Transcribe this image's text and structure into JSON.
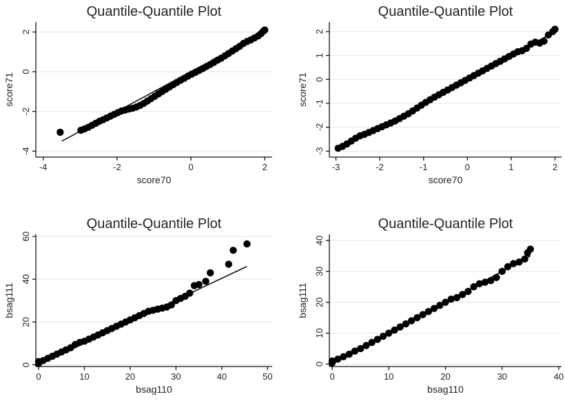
{
  "chart_data": [
    {
      "type": "scatter",
      "title": "Quantile-Quantile Plot",
      "xlabel": "score70",
      "ylabel": "score71",
      "xlim": [
        -4.2,
        2.2
      ],
      "ylim": [
        -4.3,
        2.5
      ],
      "xticks": [
        -4,
        -2,
        0,
        2
      ],
      "yticks": [
        -4,
        -2,
        0,
        2
      ],
      "grid": true,
      "reference_line": [
        [
          -3.5,
          -3.5
        ],
        [
          2.0,
          2.0
        ]
      ],
      "points": [
        [
          -3.54,
          -3.05
        ],
        [
          -2.98,
          -2.95
        ],
        [
          -2.88,
          -2.88
        ],
        [
          -2.78,
          -2.8
        ],
        [
          -2.68,
          -2.7
        ],
        [
          -2.58,
          -2.6
        ],
        [
          -2.48,
          -2.5
        ],
        [
          -2.38,
          -2.42
        ],
        [
          -2.28,
          -2.33
        ],
        [
          -2.18,
          -2.24
        ],
        [
          -2.08,
          -2.15
        ],
        [
          -1.98,
          -2.06
        ],
        [
          -1.88,
          -1.98
        ],
        [
          -1.78,
          -1.93
        ],
        [
          -1.68,
          -1.88
        ],
        [
          -1.58,
          -1.84
        ],
        [
          -1.48,
          -1.78
        ],
        [
          -1.38,
          -1.7
        ],
        [
          -1.28,
          -1.6
        ],
        [
          -1.18,
          -1.48
        ],
        [
          -1.08,
          -1.36
        ],
        [
          -0.98,
          -1.24
        ],
        [
          -0.88,
          -1.12
        ],
        [
          -0.78,
          -1.0
        ],
        [
          -0.68,
          -0.88
        ],
        [
          -0.58,
          -0.77
        ],
        [
          -0.48,
          -0.65
        ],
        [
          -0.38,
          -0.54
        ],
        [
          -0.28,
          -0.43
        ],
        [
          -0.18,
          -0.33
        ],
        [
          -0.08,
          -0.22
        ],
        [
          0.02,
          -0.12
        ],
        [
          0.12,
          -0.03
        ],
        [
          0.22,
          0.06
        ],
        [
          0.32,
          0.16
        ],
        [
          0.42,
          0.26
        ],
        [
          0.52,
          0.36
        ],
        [
          0.62,
          0.47
        ],
        [
          0.72,
          0.58
        ],
        [
          0.82,
          0.68
        ],
        [
          0.92,
          0.8
        ],
        [
          1.02,
          0.92
        ],
        [
          1.12,
          1.04
        ],
        [
          1.22,
          1.16
        ],
        [
          1.32,
          1.28
        ],
        [
          1.42,
          1.42
        ],
        [
          1.52,
          1.52
        ],
        [
          1.62,
          1.6
        ],
        [
          1.72,
          1.7
        ],
        [
          1.82,
          1.8
        ],
        [
          1.9,
          1.92
        ],
        [
          1.96,
          2.04
        ],
        [
          2.0,
          2.1
        ]
      ]
    },
    {
      "type": "scatter",
      "title": "Quantile-Quantile Plot",
      "xlabel": "score70",
      "ylabel": "score71",
      "xlim": [
        -3.15,
        2.15
      ],
      "ylim": [
        -3.25,
        2.4
      ],
      "xticks": [
        -3,
        -2,
        -1,
        0,
        1,
        2
      ],
      "yticks": [
        -3,
        -2,
        -1,
        0,
        1,
        2
      ],
      "grid": true,
      "reference_line": [
        [
          -2.95,
          -2.95
        ],
        [
          2.0,
          2.0
        ]
      ],
      "points": [
        [
          -2.95,
          -2.88
        ],
        [
          -2.85,
          -2.8
        ],
        [
          -2.75,
          -2.7
        ],
        [
          -2.65,
          -2.58
        ],
        [
          -2.55,
          -2.46
        ],
        [
          -2.45,
          -2.36
        ],
        [
          -2.35,
          -2.3
        ],
        [
          -2.25,
          -2.22
        ],
        [
          -2.15,
          -2.14
        ],
        [
          -2.05,
          -2.06
        ],
        [
          -1.95,
          -1.98
        ],
        [
          -1.85,
          -1.9
        ],
        [
          -1.75,
          -1.82
        ],
        [
          -1.65,
          -1.74
        ],
        [
          -1.55,
          -1.64
        ],
        [
          -1.45,
          -1.54
        ],
        [
          -1.35,
          -1.44
        ],
        [
          -1.25,
          -1.32
        ],
        [
          -1.15,
          -1.2
        ],
        [
          -1.05,
          -1.08
        ],
        [
          -0.95,
          -0.96
        ],
        [
          -0.85,
          -0.85
        ],
        [
          -0.75,
          -0.74
        ],
        [
          -0.65,
          -0.64
        ],
        [
          -0.55,
          -0.54
        ],
        [
          -0.45,
          -0.44
        ],
        [
          -0.35,
          -0.34
        ],
        [
          -0.25,
          -0.24
        ],
        [
          -0.15,
          -0.14
        ],
        [
          -0.05,
          -0.04
        ],
        [
          0.05,
          0.06
        ],
        [
          0.15,
          0.16
        ],
        [
          0.25,
          0.26
        ],
        [
          0.35,
          0.36
        ],
        [
          0.45,
          0.46
        ],
        [
          0.55,
          0.56
        ],
        [
          0.65,
          0.66
        ],
        [
          0.75,
          0.76
        ],
        [
          0.85,
          0.86
        ],
        [
          0.95,
          0.96
        ],
        [
          1.05,
          1.06
        ],
        [
          1.15,
          1.16
        ],
        [
          1.25,
          1.2
        ],
        [
          1.35,
          1.3
        ],
        [
          1.45,
          1.48
        ],
        [
          1.55,
          1.56
        ],
        [
          1.65,
          1.52
        ],
        [
          1.75,
          1.6
        ],
        [
          1.85,
          1.86
        ],
        [
          1.95,
          2.0
        ],
        [
          2.0,
          2.1
        ]
      ]
    },
    {
      "type": "scatter",
      "title": "Quantile-Quantile Plot",
      "xlabel": "bsag110",
      "ylabel": "bsag111",
      "xlim": [
        -0.6,
        51
      ],
      "ylim": [
        -0.8,
        61
      ],
      "xticks": [
        0,
        10,
        20,
        30,
        40,
        50
      ],
      "yticks": [
        0,
        20,
        40,
        60
      ],
      "grid": true,
      "reference_line": [
        [
          0,
          0
        ],
        [
          45.5,
          46
        ]
      ],
      "points": [
        [
          0,
          0.6
        ],
        [
          0,
          1.5
        ],
        [
          1,
          2
        ],
        [
          2,
          3
        ],
        [
          3,
          4
        ],
        [
          4,
          5
        ],
        [
          5,
          6
        ],
        [
          6,
          7
        ],
        [
          7,
          8
        ],
        [
          8,
          9.5
        ],
        [
          9,
          10.5
        ],
        [
          10,
          11
        ],
        [
          11,
          12
        ],
        [
          12,
          13
        ],
        [
          13,
          14
        ],
        [
          14,
          15
        ],
        [
          15,
          16
        ],
        [
          16,
          17
        ],
        [
          17,
          18
        ],
        [
          18,
          19
        ],
        [
          19,
          20
        ],
        [
          20,
          21
        ],
        [
          21,
          22
        ],
        [
          22,
          23
        ],
        [
          23,
          24
        ],
        [
          24,
          25
        ],
        [
          25,
          25.5
        ],
        [
          26,
          26
        ],
        [
          27,
          26.5
        ],
        [
          28,
          27
        ],
        [
          29,
          28
        ],
        [
          30,
          30
        ],
        [
          31,
          31
        ],
        [
          32,
          32
        ],
        [
          33,
          33.5
        ],
        [
          34,
          37
        ],
        [
          35,
          37.5
        ],
        [
          36.5,
          39
        ],
        [
          37.5,
          43
        ],
        [
          41.5,
          47
        ],
        [
          42.5,
          53.5
        ],
        [
          45.5,
          56.5
        ]
      ]
    },
    {
      "type": "scatter",
      "title": "Quantile-Quantile Plot",
      "xlabel": "bsag110",
      "ylabel": "bsag111",
      "xlim": [
        -0.5,
        40.5
      ],
      "ylim": [
        -0.8,
        42
      ],
      "xticks": [
        0,
        10,
        20,
        30,
        40
      ],
      "yticks": [
        0,
        10,
        20,
        30,
        40
      ],
      "grid": true,
      "reference_line": [
        [
          0,
          0
        ],
        [
          35,
          35
        ]
      ],
      "points": [
        [
          0,
          0.4
        ],
        [
          0,
          1
        ],
        [
          1,
          1.6
        ],
        [
          2,
          2.4
        ],
        [
          3,
          3.2
        ],
        [
          4,
          4.2
        ],
        [
          5,
          5
        ],
        [
          6,
          6
        ],
        [
          7,
          7
        ],
        [
          8,
          8
        ],
        [
          9,
          9
        ],
        [
          10,
          10
        ],
        [
          11,
          11
        ],
        [
          12,
          12
        ],
        [
          13,
          13
        ],
        [
          14,
          14
        ],
        [
          15,
          15
        ],
        [
          16,
          16
        ],
        [
          17,
          17
        ],
        [
          18,
          18
        ],
        [
          19,
          19
        ],
        [
          20,
          20
        ],
        [
          21,
          21
        ],
        [
          22,
          21.5
        ],
        [
          23,
          22.5
        ],
        [
          24,
          23.5
        ],
        [
          25,
          25
        ],
        [
          26,
          26
        ],
        [
          27,
          26.5
        ],
        [
          28,
          27
        ],
        [
          29,
          28
        ],
        [
          30,
          30
        ],
        [
          31,
          31.5
        ],
        [
          32,
          32.5
        ],
        [
          33,
          33
        ],
        [
          34,
          34
        ],
        [
          34.5,
          36
        ],
        [
          35,
          37.2
        ]
      ]
    }
  ]
}
